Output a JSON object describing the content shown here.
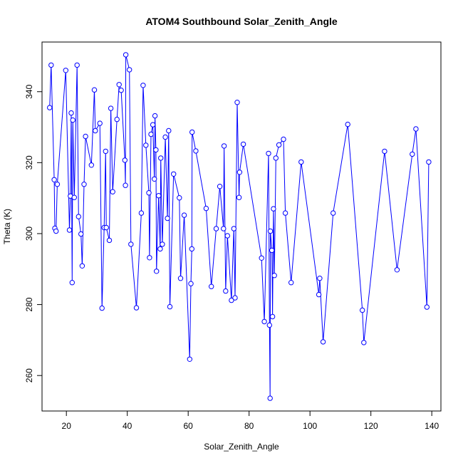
{
  "chart_data": {
    "type": "line",
    "title": "ATOM4 Southbound Solar_Zenith_Angle",
    "xlabel": "Solar_Zenith_Angle",
    "ylabel": "Theta (K)",
    "xlim": [
      12,
      143
    ],
    "ylim": [
      250,
      354
    ],
    "xticks": [
      20,
      40,
      60,
      80,
      100,
      120,
      140
    ],
    "yticks": [
      260,
      280,
      300,
      320,
      340
    ],
    "grid": false,
    "color": "#0000ff",
    "marker": "open-circle",
    "points": [
      [
        14.5,
        335.5
      ],
      [
        15,
        347.5
      ],
      [
        16,
        315.2
      ],
      [
        16.2,
        301.5
      ],
      [
        16.6,
        300.7
      ],
      [
        17,
        313.9
      ],
      [
        19.8,
        346
      ],
      [
        21,
        301
      ],
      [
        21.3,
        310.6
      ],
      [
        21.6,
        334
      ],
      [
        21.9,
        286.2
      ],
      [
        22.1,
        332
      ],
      [
        22.6,
        310.2
      ],
      [
        23.5,
        347.5
      ],
      [
        24,
        304.8
      ],
      [
        24.8,
        299.9
      ],
      [
        25.2,
        290.9
      ],
      [
        25.8,
        313.9
      ],
      [
        26.3,
        327.4
      ],
      [
        28.2,
        319.3
      ],
      [
        29.2,
        340.5
      ],
      [
        29.5,
        329
      ],
      [
        31,
        331.1
      ],
      [
        31.7,
        279
      ],
      [
        32.4,
        301.7
      ],
      [
        32.9,
        323.2
      ],
      [
        33.1,
        301.7
      ],
      [
        34.1,
        298.1
      ],
      [
        34.6,
        335.3
      ],
      [
        35.2,
        311.8
      ],
      [
        36.6,
        332.2
      ],
      [
        37.3,
        342
      ],
      [
        38,
        340.4
      ],
      [
        39.2,
        320.7
      ],
      [
        39.4,
        313.6
      ],
      [
        39.5,
        350.4
      ],
      [
        40.7,
        346.2
      ],
      [
        41.2,
        297
      ],
      [
        43,
        279.1
      ],
      [
        44.6,
        305.8
      ],
      [
        45.2,
        341.8
      ],
      [
        46.1,
        324.9
      ],
      [
        47.1,
        311.5
      ],
      [
        47.3,
        293.2
      ],
      [
        47.8,
        328
      ],
      [
        48.4,
        330.7
      ],
      [
        48.9,
        315.4
      ],
      [
        49.1,
        333.2
      ],
      [
        49.4,
        323.6
      ],
      [
        49.6,
        289.4
      ],
      [
        50.3,
        310.7
      ],
      [
        50.8,
        295.7
      ],
      [
        51,
        321.3
      ],
      [
        51.5,
        297
      ],
      [
        52.5,
        327.2
      ],
      [
        53.2,
        304.3
      ],
      [
        53.6,
        329
      ],
      [
        54,
        279.4
      ],
      [
        55.2,
        316.8
      ],
      [
        57.1,
        310.1
      ],
      [
        57.5,
        287.4
      ],
      [
        58.7,
        305.2
      ],
      [
        60.5,
        264.6
      ],
      [
        60.9,
        285.9
      ],
      [
        61.2,
        295.7
      ],
      [
        61.3,
        328.6
      ],
      [
        62.5,
        323.3
      ],
      [
        65.9,
        307.1
      ],
      [
        67.6,
        285.1
      ],
      [
        69.2,
        301.4
      ],
      [
        70.4,
        313.3
      ],
      [
        71.6,
        301.4
      ],
      [
        71.8,
        324.7
      ],
      [
        72.3,
        283.8
      ],
      [
        72.9,
        299.4
      ],
      [
        74.2,
        281.2
      ],
      [
        75,
        301.4
      ],
      [
        75.4,
        281.9
      ],
      [
        76.1,
        337
      ],
      [
        76.7,
        310.2
      ],
      [
        76.9,
        317.3
      ],
      [
        78.1,
        325.2
      ],
      [
        84.1,
        293.1
      ],
      [
        85,
        275.2
      ],
      [
        86.4,
        322.6
      ],
      [
        86.7,
        274.2
      ],
      [
        86.9,
        253.6
      ],
      [
        87,
        300.7
      ],
      [
        87.5,
        295.3
      ],
      [
        87.7,
        276.6
      ],
      [
        88,
        307
      ],
      [
        88.3,
        288.2
      ],
      [
        88.8,
        321.3
      ],
      [
        89.8,
        325
      ],
      [
        91.3,
        326.6
      ],
      [
        91.9,
        305.8
      ],
      [
        93.8,
        286.2
      ],
      [
        97.1,
        320.2
      ],
      [
        102.9,
        282.8
      ],
      [
        103.2,
        287.4
      ],
      [
        104.3,
        269.5
      ],
      [
        107.6,
        305.8
      ],
      [
        112.4,
        330.8
      ],
      [
        117.2,
        278.4
      ],
      [
        117.7,
        269.3
      ],
      [
        124.5,
        323.2
      ],
      [
        128.6,
        289.8
      ],
      [
        133.6,
        322.4
      ],
      [
        134.8,
        329.5
      ],
      [
        138.4,
        279.3
      ],
      [
        139,
        320.2
      ]
    ]
  }
}
